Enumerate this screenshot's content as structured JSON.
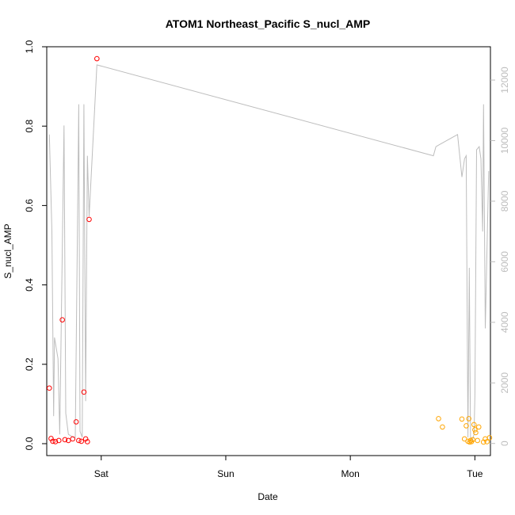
{
  "chart_data": {
    "type": "scatter",
    "title": "ATOM1 Northeast_Pacific S_nucl_AMP",
    "xlabel": "Date",
    "ylabel": "S_nucl_AMP",
    "x_axis": {
      "type": "time",
      "range": [
        "Fri 13:30",
        "Tue 03:00"
      ],
      "ticks": [
        {
          "label": "Sat",
          "value": "Sat 00:00"
        },
        {
          "label": "Sun",
          "value": "Sun 00:00"
        },
        {
          "label": "Mon",
          "value": "Mon 00:00"
        },
        {
          "label": "Tue",
          "value": "Tue 00:00"
        }
      ]
    },
    "y_axis": {
      "range": [
        -0.03,
        1.0
      ],
      "ticks": [
        "0.0",
        "0.2",
        "0.4",
        "0.6",
        "0.8",
        "1.0"
      ]
    },
    "y2_axis": {
      "range": [
        -400,
        13100
      ],
      "ticks": [
        "0",
        "2000",
        "4000",
        "6000",
        "8000",
        "10000",
        "12000"
      ],
      "color": "#bdbdbd"
    },
    "grid": false,
    "colors": {
      "series_red": "#ff0000",
      "series_orange": "#ffa500",
      "line": "#bdbdbd",
      "axis": "#000000"
    },
    "points_red": [
      {
        "x": "Fri 14:00",
        "y": 0.14
      },
      {
        "x": "Fri 14:20",
        "y": 0.013
      },
      {
        "x": "Fri 14:40",
        "y": 0.006
      },
      {
        "x": "Fri 15:10",
        "y": 0.005
      },
      {
        "x": "Fri 15:50",
        "y": 0.008
      },
      {
        "x": "Fri 16:30",
        "y": 0.312
      },
      {
        "x": "Fri 17:00",
        "y": 0.01
      },
      {
        "x": "Fri 17:40",
        "y": 0.008
      },
      {
        "x": "Fri 18:30",
        "y": 0.012
      },
      {
        "x": "Fri 19:10",
        "y": 0.055
      },
      {
        "x": "Fri 19:40",
        "y": 0.008
      },
      {
        "x": "Fri 20:10",
        "y": 0.006
      },
      {
        "x": "Fri 20:40",
        "y": 0.13
      },
      {
        "x": "Fri 21:00",
        "y": 0.012
      },
      {
        "x": "Fri 21:20",
        "y": 0.005
      },
      {
        "x": "Fri 21:40",
        "y": 0.565
      },
      {
        "x": "Fri 23:10",
        "y": 0.97
      }
    ],
    "points_orange": [
      {
        "x": "Mon 17:00",
        "y": 0.063
      },
      {
        "x": "Mon 17:45",
        "y": 0.042
      },
      {
        "x": "Mon 21:30",
        "y": 0.062
      },
      {
        "x": "Mon 22:00",
        "y": 0.012
      },
      {
        "x": "Mon 22:20",
        "y": 0.045
      },
      {
        "x": "Mon 22:40",
        "y": 0.006
      },
      {
        "x": "Mon 22:50",
        "y": 0.063
      },
      {
        "x": "Mon 23:00",
        "y": 0.004
      },
      {
        "x": "Mon 23:10",
        "y": 0.008
      },
      {
        "x": "Mon 23:20",
        "y": 0.005
      },
      {
        "x": "Mon 23:35",
        "y": 0.01
      },
      {
        "x": "Mon 23:50",
        "y": 0.048
      },
      {
        "x": "Tue 00:00",
        "y": 0.035
      },
      {
        "x": "Tue 00:10",
        "y": 0.028
      },
      {
        "x": "Tue 00:30",
        "y": 0.008
      },
      {
        "x": "Tue 00:45",
        "y": 0.042
      },
      {
        "x": "Tue 01:40",
        "y": 0.004
      },
      {
        "x": "Tue 02:00",
        "y": 0.012
      },
      {
        "x": "Tue 02:20",
        "y": 0.005
      },
      {
        "x": "Tue 02:50",
        "y": 0.015
      }
    ],
    "line_series": [
      {
        "x": "Fri 14:00",
        "y2": 10200
      },
      {
        "x": "Fri 14:30",
        "y2": 7000
      },
      {
        "x": "Fri 14:50",
        "y2": 900
      },
      {
        "x": "Fri 15:00",
        "y2": 3500
      },
      {
        "x": "Fri 15:40",
        "y2": 2800
      },
      {
        "x": "Fri 16:00",
        "y2": 300
      },
      {
        "x": "Fri 16:50",
        "y2": 10500
      },
      {
        "x": "Fri 17:10",
        "y2": 1000
      },
      {
        "x": "Fri 17:40",
        "y2": 300
      },
      {
        "x": "Fri 18:40",
        "y2": 200
      },
      {
        "x": "Fri 19:00",
        "y2": 200
      },
      {
        "x": "Fri 19:40",
        "y2": 11200
      },
      {
        "x": "Fri 19:55",
        "y2": 400
      },
      {
        "x": "Fri 20:20",
        "y2": 200
      },
      {
        "x": "Fri 20:40",
        "y2": 11200
      },
      {
        "x": "Fri 21:00",
        "y2": 1400
      },
      {
        "x": "Fri 21:20",
        "y2": 9500
      },
      {
        "x": "Fri 21:40",
        "y2": 7500
      },
      {
        "x": "Fri 23:10",
        "y2": 12500
      },
      {
        "x": "Mon 16:00",
        "y2": 9500
      },
      {
        "x": "Mon 16:30",
        "y2": 9800
      },
      {
        "x": "Mon 17:30",
        "y2": 9900
      },
      {
        "x": "Mon 20:40",
        "y2": 10200
      },
      {
        "x": "Mon 21:30",
        "y2": 8800
      },
      {
        "x": "Mon 22:00",
        "y2": 9400
      },
      {
        "x": "Mon 22:20",
        "y2": 9500
      },
      {
        "x": "Mon 22:40",
        "y2": 200
      },
      {
        "x": "Mon 22:55",
        "y2": 5800
      },
      {
        "x": "Mon 23:10",
        "y2": 100
      },
      {
        "x": "Mon 23:30",
        "y2": 100
      },
      {
        "x": "Mon 23:50",
        "y2": 300
      },
      {
        "x": "Tue 00:00",
        "y2": 1600
      },
      {
        "x": "Tue 00:20",
        "y2": 9700
      },
      {
        "x": "Tue 00:50",
        "y2": 9800
      },
      {
        "x": "Tue 01:10",
        "y2": 9400
      },
      {
        "x": "Tue 01:30",
        "y2": 7000
      },
      {
        "x": "Tue 01:40",
        "y2": 11200
      },
      {
        "x": "Tue 02:00",
        "y2": 3800
      },
      {
        "x": "Tue 02:40",
        "y2": 9000
      }
    ]
  }
}
